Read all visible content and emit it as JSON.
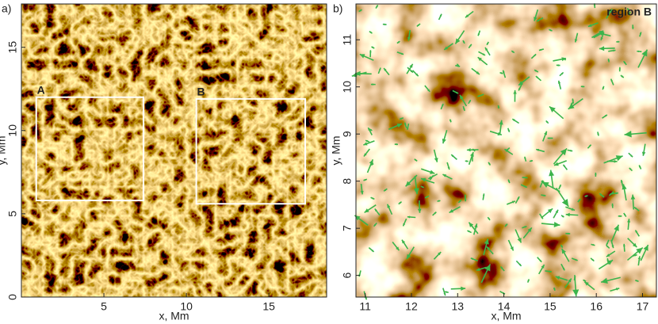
{
  "chart_data": [
    {
      "type": "image",
      "panel_label": "a)",
      "x_label": "x, Mm",
      "y_label": "y, Mm",
      "xlim": [
        0,
        18.5
      ],
      "ylim": [
        0,
        17.6
      ],
      "xticks": [
        5,
        10,
        15
      ],
      "yticks": [
        0,
        5,
        10,
        15
      ],
      "regions": [
        {
          "label": "A",
          "x": [
            0.9,
            7.4
          ],
          "y": [
            5.8,
            12.0
          ]
        },
        {
          "label": "B",
          "x": [
            10.6,
            17.2
          ],
          "y": [
            5.6,
            11.9
          ]
        }
      ]
    },
    {
      "type": "image",
      "panel_label": "b)",
      "title": "region B",
      "x_label": "x, Mm",
      "y_label": "y, Mm",
      "xlim": [
        10.8,
        17.3
      ],
      "ylim": [
        5.54,
        11.76
      ],
      "xticks": [
        11,
        12,
        13,
        14,
        15,
        16,
        17
      ],
      "yticks": [
        6,
        7,
        8,
        9,
        10,
        11
      ],
      "regions": []
    }
  ]
}
